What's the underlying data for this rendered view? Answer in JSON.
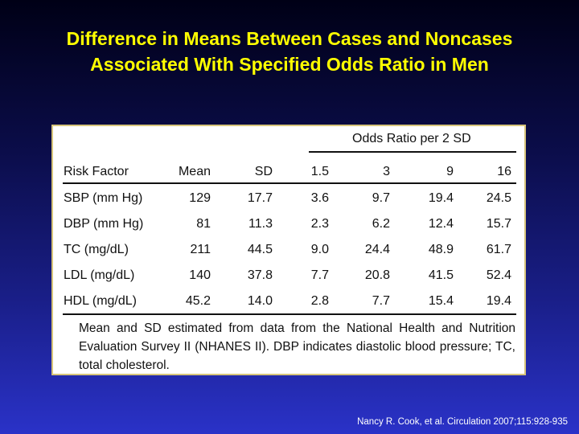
{
  "slide": {
    "title_line1": "Difference in Means Between Cases and Noncases",
    "title_line2": "Associated With Specified Odds Ratio in Men",
    "citation": "Nancy R. Cook, et al. Circulation 2007;115:928-935"
  },
  "table": {
    "group_header": "Odds Ratio per 2 SD",
    "columns": [
      "Risk Factor",
      "Mean",
      "SD",
      "1.5",
      "3",
      "9",
      "16"
    ],
    "rows": [
      [
        "SBP (mm Hg)",
        "129",
        "17.7",
        "3.6",
        "9.7",
        "19.4",
        "24.5"
      ],
      [
        "DBP (mm Hg)",
        "81",
        "11.3",
        "2.3",
        "6.2",
        "12.4",
        "15.7"
      ],
      [
        "TC (mg/dL)",
        "211",
        "44.5",
        "9.0",
        "24.4",
        "48.9",
        "61.7"
      ],
      [
        "LDL (mg/dL)",
        "140",
        "37.8",
        "7.7",
        "20.8",
        "41.5",
        "52.4"
      ],
      [
        "HDL (mg/dL)",
        "45.2",
        "14.0",
        "2.8",
        "7.7",
        "15.4",
        "19.4"
      ]
    ],
    "footnote": "Mean and SD estimated from data from the National Health and Nutrition Evaluation Survey II (NHANES II). DBP indicates diastolic blood pressure; TC, total cholesterol."
  },
  "colors": {
    "title": "#ffff00",
    "panel_border": "#d6c47a"
  }
}
